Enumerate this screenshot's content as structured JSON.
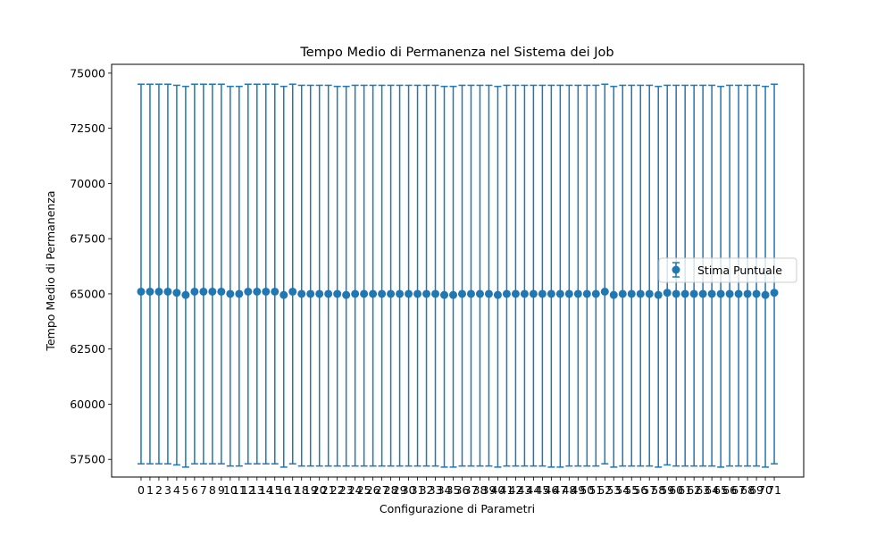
{
  "chart_data": {
    "type": "scatter",
    "title": "Tempo Medio di Permanenza nel Sistema dei Job",
    "xlabel": "Configurazione di Parametri",
    "ylabel": "Tempo Medio di Permanenza",
    "xlim": [
      -3.3,
      74.3
    ],
    "ylim": [
      56700,
      75400
    ],
    "yticks": [
      57500,
      60000,
      62500,
      65000,
      67500,
      70000,
      72500,
      75000
    ],
    "grid": false,
    "legend": {
      "position": "center-right",
      "entries": [
        "Stima Puntuale"
      ]
    },
    "colors": {
      "series": "#1f77b4"
    },
    "series": [
      {
        "name": "Stima Puntuale",
        "x": [
          0,
          1,
          2,
          3,
          4,
          5,
          6,
          7,
          8,
          9,
          10,
          11,
          12,
          13,
          14,
          15,
          16,
          17,
          18,
          19,
          20,
          21,
          22,
          23,
          24,
          25,
          26,
          27,
          28,
          29,
          30,
          31,
          32,
          33,
          34,
          35,
          36,
          37,
          38,
          39,
          40,
          41,
          42,
          43,
          44,
          45,
          46,
          47,
          48,
          49,
          50,
          51,
          52,
          53,
          54,
          55,
          56,
          57,
          58,
          59,
          60,
          61,
          62,
          63,
          64,
          65,
          66,
          67,
          68,
          69,
          70,
          71
        ],
        "y": [
          65100,
          65100,
          65100,
          65100,
          65050,
          64950,
          65100,
          65100,
          65100,
          65100,
          65000,
          65000,
          65100,
          65100,
          65100,
          65100,
          64950,
          65100,
          65000,
          65000,
          65000,
          65000,
          65000,
          64950,
          65000,
          65000,
          65000,
          65000,
          65000,
          65000,
          65000,
          65000,
          65000,
          65000,
          64950,
          64950,
          65000,
          65000,
          65000,
          65000,
          64950,
          65000,
          65000,
          65000,
          65000,
          65000,
          65000,
          65000,
          65000,
          65000,
          65000,
          65000,
          65100,
          64950,
          65000,
          65000,
          65000,
          65000,
          64950,
          65050,
          65000,
          65000,
          65000,
          65000,
          65000,
          65000,
          65000,
          65000,
          65000,
          65000,
          64950,
          65050
        ],
        "yerr_low": [
          57300,
          57300,
          57300,
          57300,
          57250,
          57150,
          57300,
          57300,
          57300,
          57300,
          57200,
          57200,
          57300,
          57300,
          57300,
          57300,
          57150,
          57300,
          57200,
          57200,
          57200,
          57200,
          57200,
          57200,
          57200,
          57200,
          57200,
          57200,
          57200,
          57200,
          57200,
          57200,
          57200,
          57200,
          57150,
          57150,
          57200,
          57200,
          57200,
          57200,
          57150,
          57200,
          57200,
          57200,
          57200,
          57200,
          57150,
          57150,
          57200,
          57200,
          57200,
          57200,
          57300,
          57150,
          57200,
          57200,
          57200,
          57200,
          57150,
          57250,
          57200,
          57200,
          57200,
          57200,
          57200,
          57150,
          57200,
          57200,
          57200,
          57200,
          57150,
          57300
        ],
        "yerr_high": [
          74500,
          74500,
          74500,
          74500,
          74450,
          74400,
          74500,
          74500,
          74500,
          74500,
          74400,
          74400,
          74500,
          74500,
          74500,
          74500,
          74400,
          74500,
          74450,
          74450,
          74450,
          74450,
          74400,
          74400,
          74450,
          74450,
          74450,
          74450,
          74450,
          74450,
          74450,
          74450,
          74450,
          74450,
          74400,
          74400,
          74450,
          74450,
          74450,
          74450,
          74400,
          74450,
          74450,
          74450,
          74450,
          74450,
          74450,
          74450,
          74450,
          74450,
          74450,
          74450,
          74500,
          74400,
          74450,
          74450,
          74450,
          74450,
          74400,
          74450,
          74450,
          74450,
          74450,
          74450,
          74450,
          74400,
          74450,
          74450,
          74450,
          74450,
          74400,
          74500
        ]
      }
    ]
  }
}
